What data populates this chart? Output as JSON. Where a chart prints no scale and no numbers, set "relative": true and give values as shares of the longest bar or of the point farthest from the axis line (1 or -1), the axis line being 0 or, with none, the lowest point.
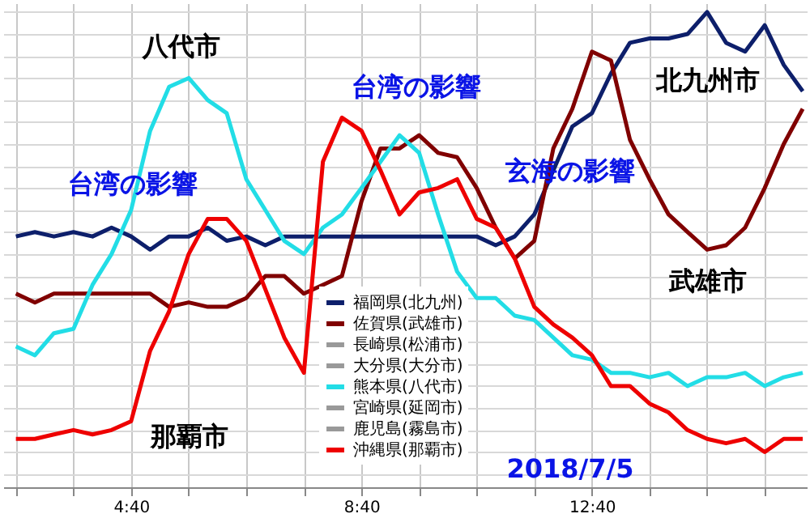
{
  "chart_data": {
    "type": "line",
    "relative": true,
    "grid": true,
    "legend": "bottom",
    "x": [
      2.67,
      3,
      3.33,
      3.67,
      4,
      4.33,
      4.67,
      5,
      5.33,
      5.67,
      6,
      6.33,
      6.67,
      7,
      7.33,
      7.67,
      8,
      8.33,
      8.67,
      9,
      9.33,
      9.67,
      10,
      10.33,
      10.67,
      11,
      11.33,
      11.67,
      12,
      12.33,
      12.67,
      13,
      13.33,
      13.67,
      14,
      14.33,
      14.67,
      15,
      15.33,
      15.67,
      16,
      16.33
    ],
    "xlim": [
      2.45,
      16.4
    ],
    "xticks": [
      {
        "value": 2.67,
        "label": null
      },
      {
        "value": 3.67,
        "label": null
      },
      {
        "value": 4.67,
        "label": "4:40"
      },
      {
        "value": 5.67,
        "label": null
      },
      {
        "value": 6.67,
        "label": null
      },
      {
        "value": 7.67,
        "label": null
      },
      {
        "value": 8.67,
        "label": "8:40"
      },
      {
        "value": 9.67,
        "label": null
      },
      {
        "value": 10.67,
        "label": null
      },
      {
        "value": 11.67,
        "label": null
      },
      {
        "value": 12.67,
        "label": "12:40"
      },
      {
        "value": 13.67,
        "label": null
      },
      {
        "value": 14.67,
        "label": null
      },
      {
        "value": 15.67,
        "label": null
      }
    ],
    "series": [
      {
        "name": "福岡県(北九州)",
        "color": "#0d1f6b",
        "values": [
          0.49,
          0.5,
          0.49,
          0.5,
          0.49,
          0.51,
          0.49,
          0.46,
          0.49,
          0.49,
          0.51,
          0.48,
          0.49,
          0.47,
          0.49,
          0.49,
          0.49,
          0.49,
          0.49,
          0.49,
          0.49,
          0.49,
          0.49,
          0.49,
          0.49,
          0.47,
          0.49,
          0.54,
          0.64,
          0.74,
          0.77,
          0.86,
          0.93,
          0.94,
          0.94,
          0.95,
          1.0,
          0.93,
          0.91,
          0.97,
          0.88,
          0.82
        ]
      },
      {
        "name": "佐賀県(武雄市)",
        "color": "#800000",
        "values": [
          0.36,
          0.34,
          0.36,
          0.36,
          0.36,
          0.36,
          0.36,
          0.36,
          0.33,
          0.34,
          0.33,
          0.33,
          0.35,
          0.4,
          0.4,
          0.36,
          0.38,
          0.4,
          0.57,
          0.69,
          0.69,
          0.72,
          0.68,
          0.67,
          0.6,
          0.51,
          0.44,
          0.48,
          0.69,
          0.78,
          0.91,
          0.89,
          0.71,
          0.62,
          0.54,
          0.5,
          0.46,
          0.47,
          0.51,
          0.6,
          0.7,
          0.78
        ]
      },
      {
        "name": "長崎県(松浦市)",
        "color": "#999999",
        "values": [
          null,
          null,
          null,
          null,
          null,
          null,
          null,
          null,
          null,
          null,
          null,
          null,
          null,
          null,
          null,
          null,
          null,
          null,
          null,
          null,
          null,
          null,
          null,
          null,
          null,
          null,
          null,
          null,
          null,
          null,
          null,
          null,
          null,
          null,
          null,
          null,
          null,
          null,
          null,
          null,
          null,
          null
        ]
      },
      {
        "name": "大分県(大分市)",
        "color": "#999999",
        "values": [
          null,
          null,
          null,
          null,
          null,
          null,
          null,
          null,
          null,
          null,
          null,
          null,
          null,
          null,
          null,
          null,
          null,
          null,
          null,
          null,
          null,
          null,
          null,
          null,
          null,
          null,
          null,
          null,
          null,
          null,
          null,
          null,
          null,
          null,
          null,
          null,
          null,
          null,
          null,
          null,
          null,
          null
        ]
      },
      {
        "name": "熊本県(八代市)",
        "color": "#22dde6",
        "values": [
          0.24,
          0.22,
          0.27,
          0.28,
          0.38,
          0.45,
          0.55,
          0.73,
          0.83,
          0.85,
          0.8,
          0.77,
          0.62,
          0.55,
          0.48,
          0.45,
          0.51,
          0.54,
          0.6,
          0.66,
          0.72,
          0.68,
          0.54,
          0.41,
          0.35,
          0.35,
          0.31,
          0.3,
          0.26,
          0.22,
          0.21,
          0.18,
          0.18,
          0.17,
          0.18,
          0.15,
          0.17,
          0.17,
          0.18,
          0.15,
          0.17,
          0.18
        ]
      },
      {
        "name": "宮崎県(延岡市)",
        "color": "#999999",
        "values": [
          null,
          null,
          null,
          null,
          null,
          null,
          null,
          null,
          null,
          null,
          null,
          null,
          null,
          null,
          null,
          null,
          null,
          null,
          null,
          null,
          null,
          null,
          null,
          null,
          null,
          null,
          null,
          null,
          null,
          null,
          null,
          null,
          null,
          null,
          null,
          null,
          null,
          null,
          null,
          null,
          null,
          null
        ]
      },
      {
        "name": "鹿児島(霧島市)",
        "color": "#999999",
        "values": [
          null,
          null,
          null,
          null,
          null,
          null,
          null,
          null,
          null,
          null,
          null,
          null,
          null,
          null,
          null,
          null,
          null,
          null,
          null,
          null,
          null,
          null,
          null,
          null,
          null,
          null,
          null,
          null,
          null,
          null,
          null,
          null,
          null,
          null,
          null,
          null,
          null,
          null,
          null,
          null,
          null,
          null
        ]
      },
      {
        "name": "沖縄県(那覇市)",
        "color": "#ee0000",
        "values": [
          0.03,
          0.03,
          0.04,
          0.05,
          0.04,
          0.05,
          0.07,
          0.23,
          0.32,
          0.45,
          0.53,
          0.53,
          0.48,
          0.37,
          0.26,
          0.18,
          0.66,
          0.76,
          0.73,
          0.64,
          0.54,
          0.59,
          0.6,
          0.62,
          0.53,
          0.51,
          0.44,
          0.33,
          0.29,
          0.26,
          0.22,
          0.15,
          0.15,
          0.11,
          0.09,
          0.05,
          0.03,
          0.02,
          0.03,
          0,
          0.03,
          0.03
        ]
      }
    ],
    "annotations": [
      "八代市",
      "台湾の影響",
      "台湾の影響",
      "玄海の影響",
      "北九州市",
      "武雄市",
      "那覇市",
      "2018/7/5"
    ]
  }
}
